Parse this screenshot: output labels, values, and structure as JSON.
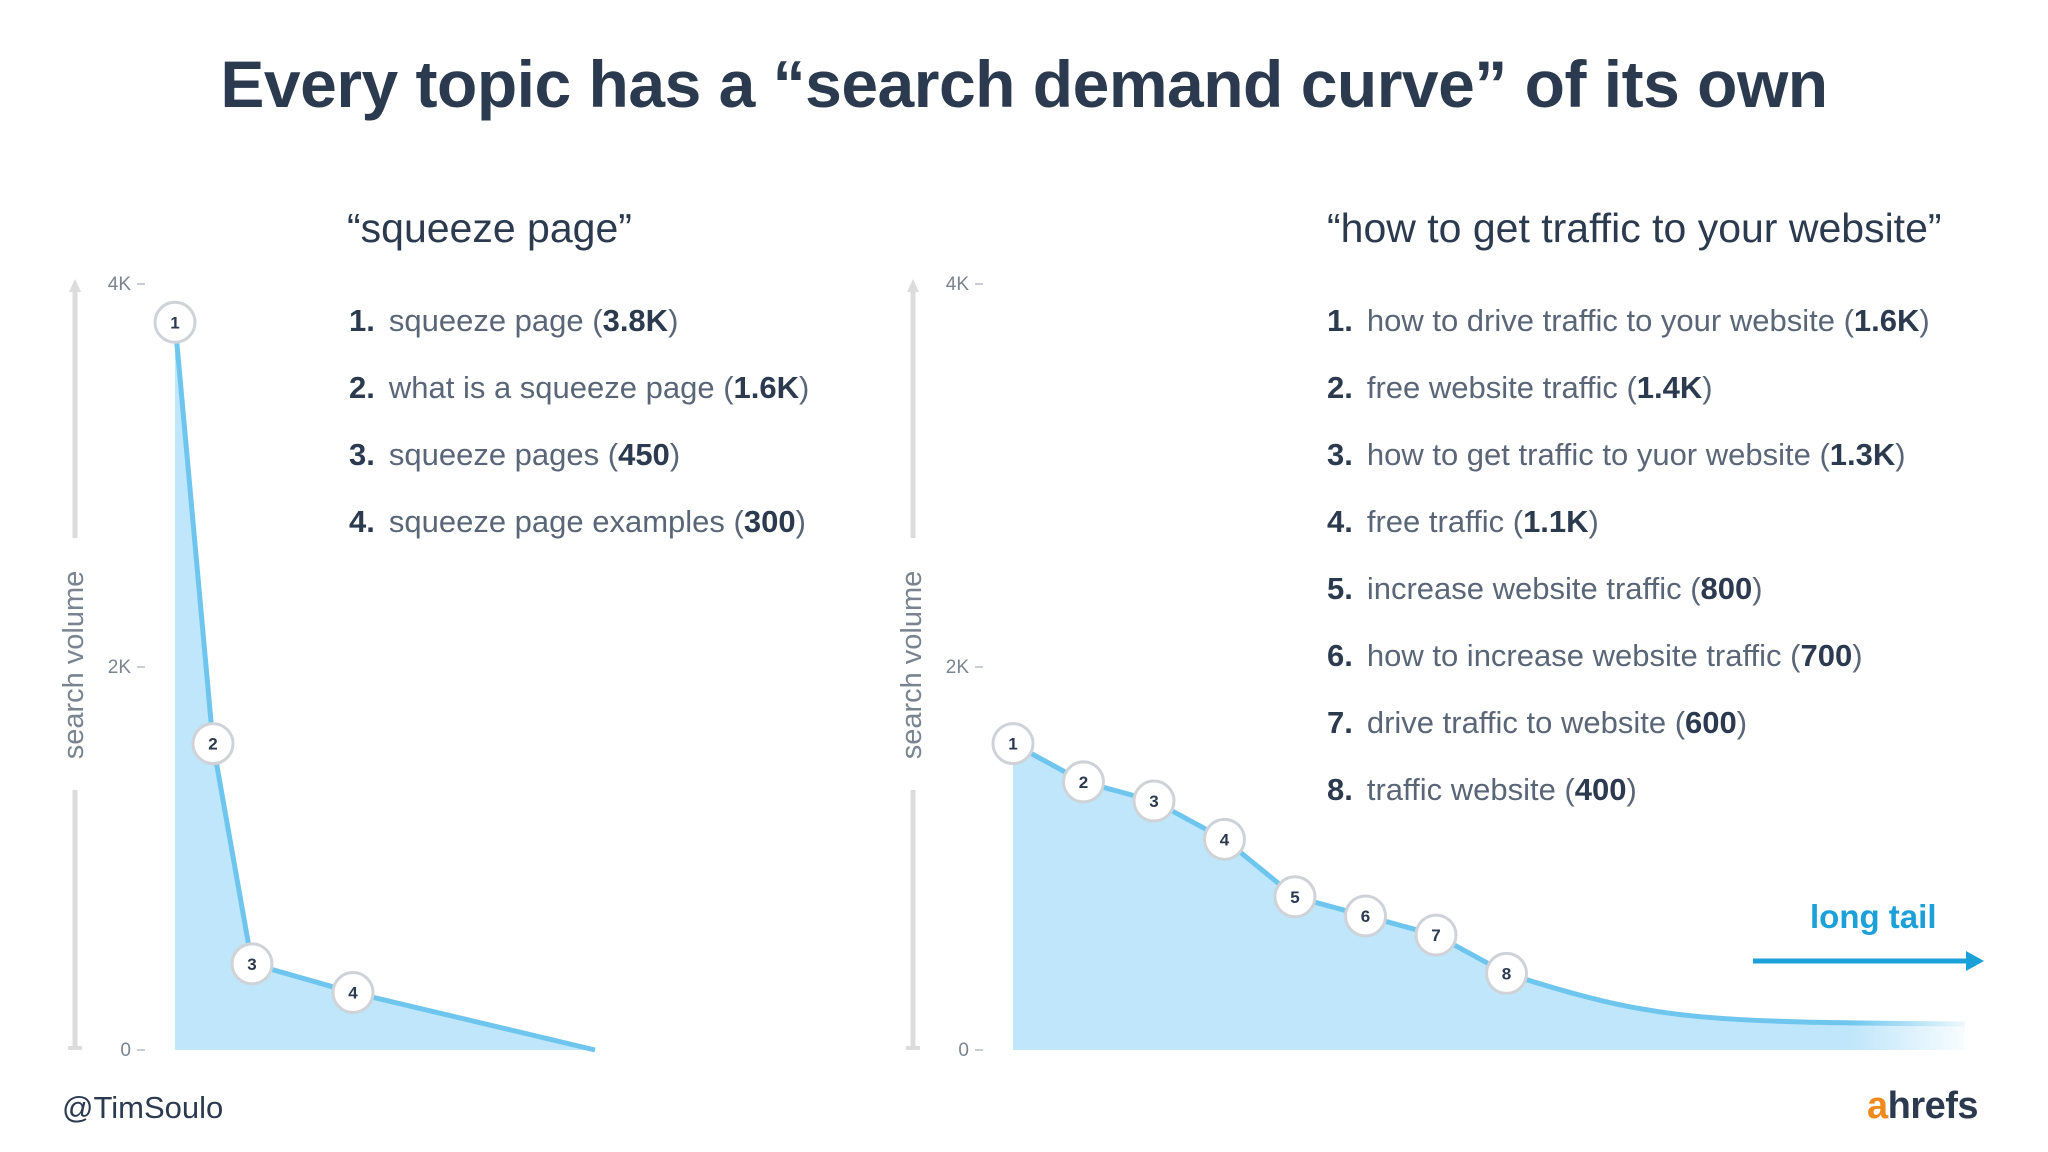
{
  "title": "Every topic has a “search demand curve” of its own",
  "footer": {
    "handle": "@TimSoulo",
    "brand_a": "a",
    "brand_rest": "hrefs"
  },
  "colors": {
    "curve": "#6ec6ee",
    "fill": "#bfe6fa",
    "text": "#2b3a4e",
    "muted": "#5a6677",
    "accent": "#1ba0d8",
    "brand_accent": "#f08a1c"
  },
  "annotation": {
    "label": "long tail"
  },
  "chart_data": [
    {
      "type": "area",
      "title": "“squeeze page”",
      "ylabel": "search volume",
      "ylim": [
        0,
        4000
      ],
      "yticks": [
        "0",
        "2K",
        "4K"
      ],
      "keywords": [
        {
          "n": "1.",
          "text": "squeeze page",
          "vol": "3.8K",
          "value": 3800
        },
        {
          "n": "2.",
          "text": "what is a squeeze page",
          "vol": "1.6K",
          "value": 1600
        },
        {
          "n": "3.",
          "text": "squeeze pages",
          "vol": "450",
          "value": 450
        },
        {
          "n": "4.",
          "text": "squeeze page examples",
          "vol": "300",
          "value": 300
        }
      ],
      "points": [
        {
          "label": "1",
          "rank": 1,
          "value": 3800
        },
        {
          "label": "2",
          "rank": 2,
          "value": 1600
        },
        {
          "label": "3",
          "rank": 3,
          "value": 450
        },
        {
          "label": "4",
          "rank": 4,
          "value": 300
        }
      ]
    },
    {
      "type": "area",
      "title": "“how to get traffic to your website”",
      "ylabel": "search volume",
      "ylim": [
        0,
        4000
      ],
      "yticks": [
        "0",
        "2K",
        "4K"
      ],
      "keywords": [
        {
          "n": "1.",
          "text": "how to drive traffic to your website",
          "vol": "1.6K",
          "value": 1600
        },
        {
          "n": "2.",
          "text": "free website traffic",
          "vol": "1.4K",
          "value": 1400
        },
        {
          "n": "3.",
          "text": "how to get traffic to yuor website",
          "vol": "1.3K",
          "value": 1300
        },
        {
          "n": "4.",
          "text": "free traffic",
          "vol": "1.1K",
          "value": 1100
        },
        {
          "n": "5.",
          "text": "increase website traffic",
          "vol": "800",
          "value": 800
        },
        {
          "n": "6.",
          "text": "how to increase website traffic",
          "vol": "700",
          "value": 700
        },
        {
          "n": "7.",
          "text": "drive traffic to website",
          "vol": "600",
          "value": 600
        },
        {
          "n": "8.",
          "text": "traffic website",
          "vol": "400",
          "value": 400
        }
      ],
      "points": [
        {
          "label": "1",
          "rank": 1,
          "value": 1600
        },
        {
          "label": "2",
          "rank": 2,
          "value": 1400
        },
        {
          "label": "3",
          "rank": 3,
          "value": 1300
        },
        {
          "label": "4",
          "rank": 4,
          "value": 1100
        },
        {
          "label": "5",
          "rank": 5,
          "value": 800
        },
        {
          "label": "6",
          "rank": 6,
          "value": 700
        },
        {
          "label": "7",
          "rank": 7,
          "value": 600
        },
        {
          "label": "8",
          "rank": 8,
          "value": 400
        }
      ]
    }
  ]
}
